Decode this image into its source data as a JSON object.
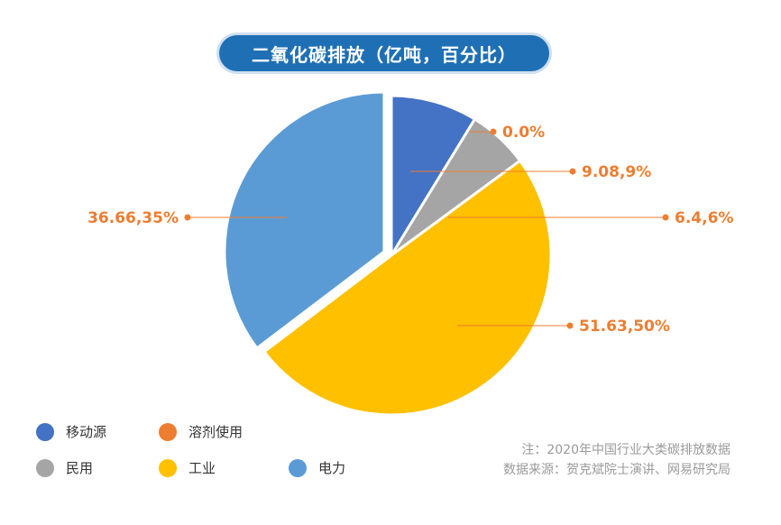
{
  "title": "二氧化碳排放（亿吨，百分比）",
  "chart_data": {
    "type": "pie",
    "slices": [
      {
        "name": "移动源",
        "value": 9.08,
        "percent": 9,
        "label": "9.08,9%",
        "color": "#4472c4"
      },
      {
        "name": "民用",
        "value": 6.4,
        "percent": 6,
        "label": "6.4,6%",
        "color": "#a5a5a5"
      },
      {
        "name": "工业",
        "value": 51.63,
        "percent": 50,
        "label": "51.63,50%",
        "color": "#ffc000"
      },
      {
        "name": "电力",
        "value": 36.66,
        "percent": 35,
        "label": "36.66,35%",
        "color": "#5b9bd5"
      },
      {
        "name": "溶剂使用",
        "value": 0.0,
        "percent": 0,
        "label": "0.0%",
        "color": "#ed7d31"
      }
    ],
    "label_color": "#ed7d31",
    "legend_position": "bottom-left"
  },
  "legend": [
    {
      "label": "移动源",
      "color": "#4472c4"
    },
    {
      "label": "溶剂使用",
      "color": "#ed7d31"
    },
    {
      "label": "民用",
      "color": "#a5a5a5"
    },
    {
      "label": "工业",
      "color": "#ffc000"
    },
    {
      "label": "电力",
      "color": "#5b9bd5"
    }
  ],
  "note": {
    "line1": "注：2020年中国行业大类碳排放数据",
    "line2": "数据来源：贺克斌院士演讲、网易研究局"
  }
}
